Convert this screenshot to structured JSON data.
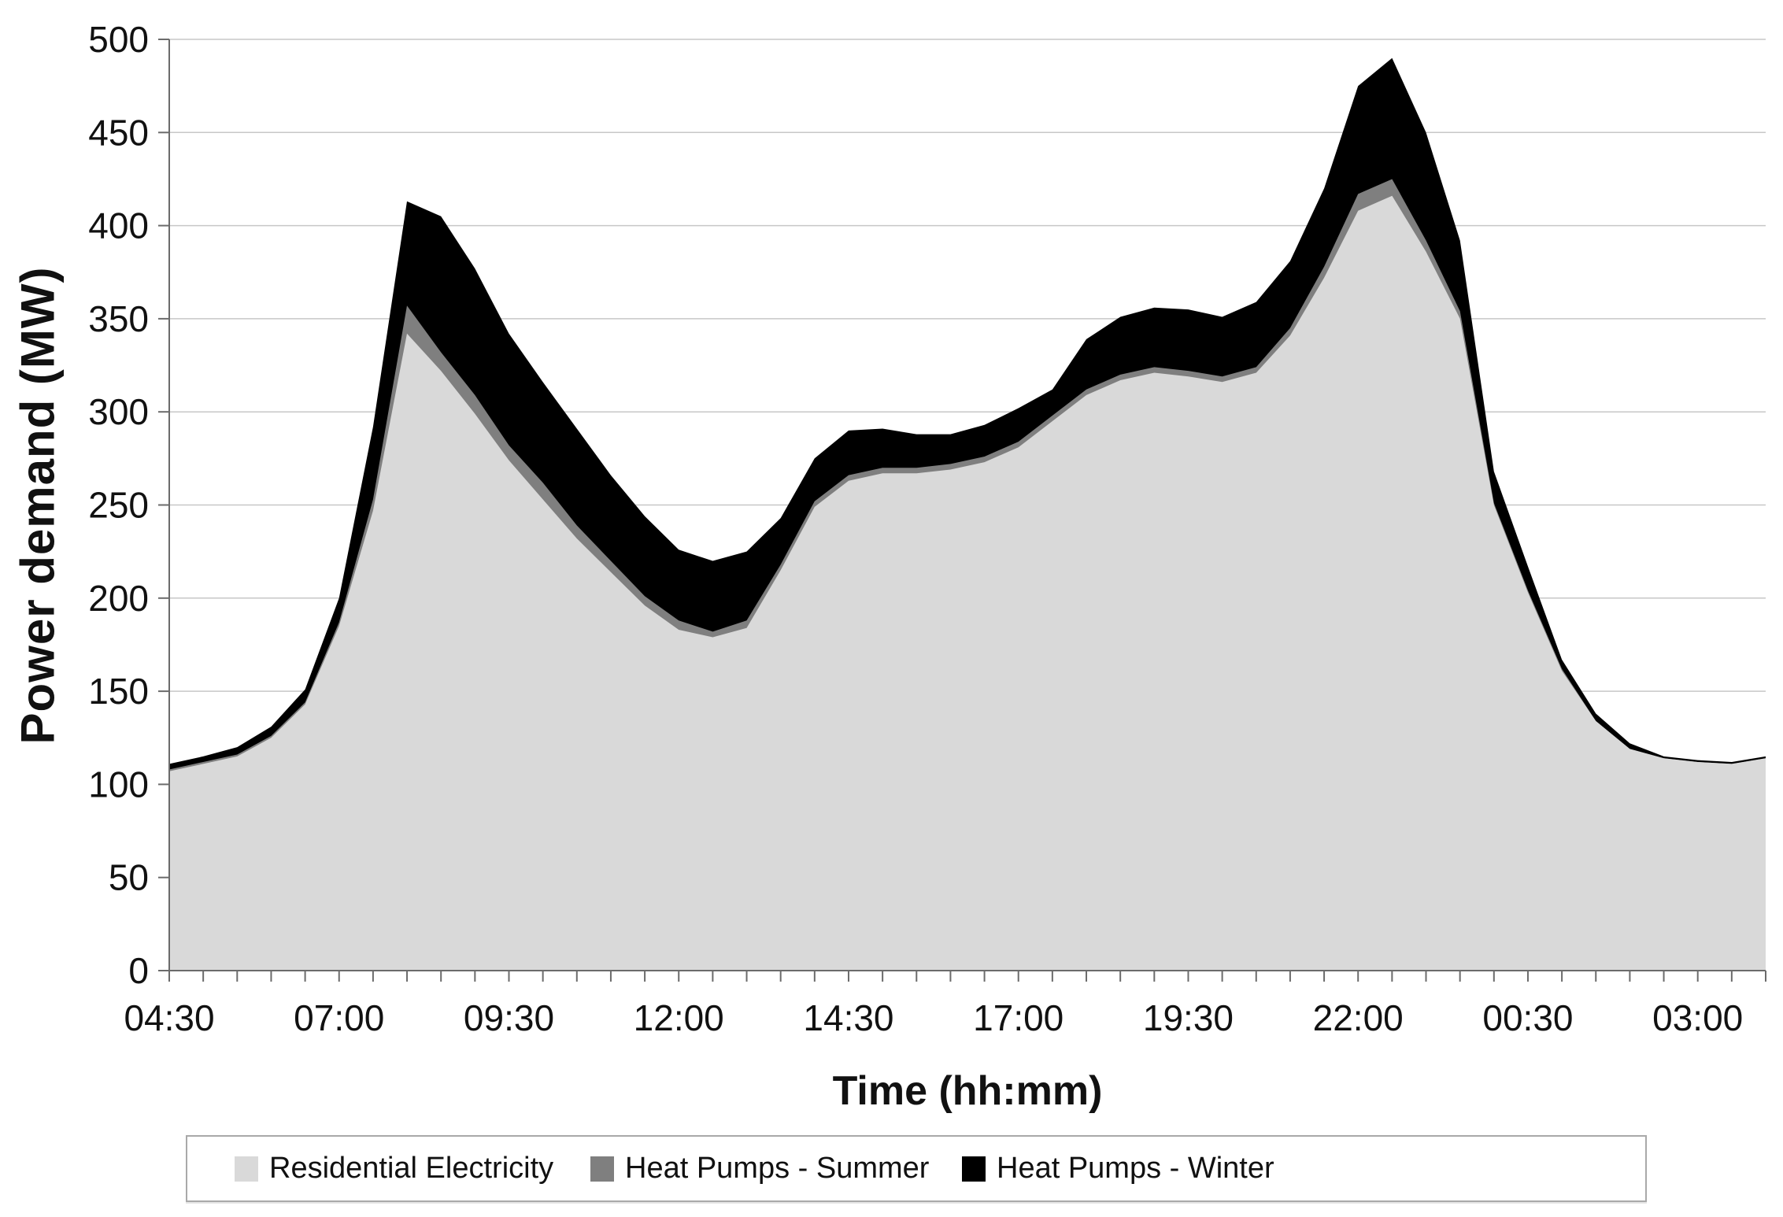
{
  "page": {
    "background": "#ffffff"
  },
  "chart_data": {
    "type": "area",
    "stacked": true,
    "title": "",
    "xlabel": "Time (hh:mm)",
    "ylabel": "Power demand (MW)",
    "ylim": [
      0,
      500
    ],
    "ytick_step": 50,
    "grid": "horizontal-only",
    "legend_position": "bottom",
    "axis_color": "#6b6b6b",
    "gridline_color": "#c7c7c7",
    "text_color": "#111111",
    "x_major_label_every": 5,
    "x_tick_labels_shown": [
      "04:30",
      "07:00",
      "09:30",
      "12:00",
      "14:30",
      "17:00",
      "19:30",
      "22:00",
      "00:30",
      "03:00"
    ],
    "categories": [
      "04:30",
      "05:00",
      "05:30",
      "06:00",
      "06:30",
      "07:00",
      "07:30",
      "08:00",
      "08:30",
      "09:00",
      "09:30",
      "10:00",
      "10:30",
      "11:00",
      "11:30",
      "12:00",
      "12:30",
      "13:00",
      "13:30",
      "14:00",
      "14:30",
      "15:00",
      "15:30",
      "16:00",
      "16:30",
      "17:00",
      "17:30",
      "18:00",
      "18:30",
      "19:00",
      "19:30",
      "20:00",
      "20:30",
      "21:00",
      "21:30",
      "22:00",
      "22:30",
      "23:00",
      "23:30",
      "00:00",
      "00:30",
      "01:00",
      "01:30",
      "02:00",
      "02:30",
      "03:00",
      "03:30",
      "04:00"
    ],
    "series": [
      {
        "name": "Residential Electricity",
        "color": "#d9d9d9",
        "values": [
          107,
          111,
          115,
          125,
          143,
          185,
          247,
          342,
          322,
          299,
          274,
          253,
          232,
          214,
          196,
          183,
          179,
          184,
          215,
          249,
          263,
          267,
          267,
          269,
          273,
          281,
          295,
          309,
          317,
          321,
          319,
          316,
          321,
          341,
          372,
          408,
          416,
          386,
          350,
          250,
          203,
          161,
          134,
          119,
          114,
          112,
          111,
          114
        ]
      },
      {
        "name": "Heat Pumps - Summer",
        "color": "#7f7f7f",
        "values": [
          1,
          1,
          1,
          1,
          1,
          2,
          6,
          15,
          10,
          10,
          8,
          9,
          7,
          6,
          5,
          5,
          3,
          4,
          3,
          3,
          3,
          3,
          3,
          3,
          3,
          3,
          3,
          3,
          3,
          3,
          3,
          3,
          3,
          4,
          6,
          9,
          9,
          6,
          4,
          1,
          1,
          1,
          0,
          0,
          0,
          0,
          0,
          0
        ]
      },
      {
        "name": "Heat Pumps - Winter",
        "color": "#000000",
        "values": [
          3,
          3,
          4,
          5,
          7,
          13,
          39,
          56,
          73,
          68,
          60,
          54,
          52,
          46,
          43,
          38,
          38,
          37,
          25,
          23,
          24,
          21,
          18,
          16,
          17,
          18,
          14,
          27,
          31,
          32,
          33,
          32,
          35,
          36,
          42,
          58,
          65,
          58,
          38,
          17,
          13,
          5,
          4,
          3,
          1,
          1,
          1,
          1
        ]
      }
    ]
  }
}
